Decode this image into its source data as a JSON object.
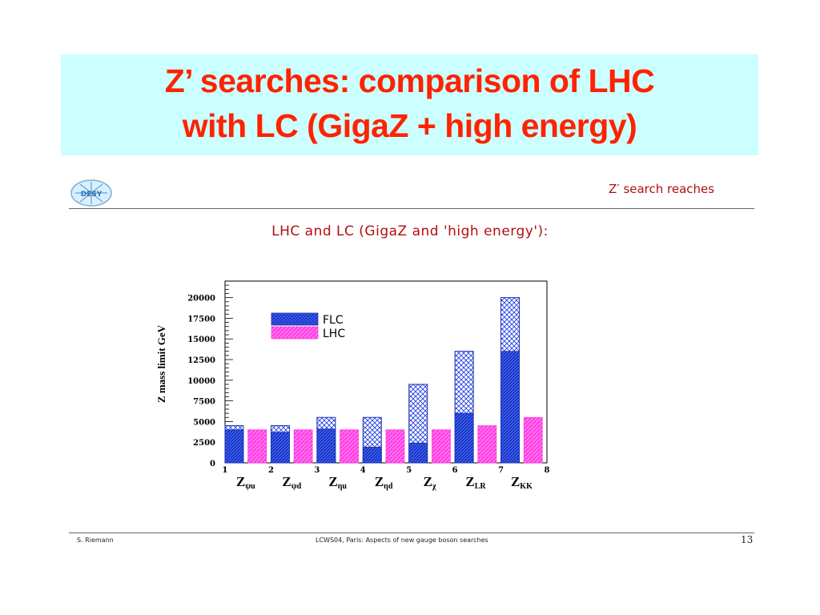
{
  "slide": {
    "title_line1": "Z’ searches: comparison of LHC",
    "title_line2": "with LC (GigaZ + high energy)",
    "header_right": "Z′ search reaches",
    "subtitle": "LHC and LC (GigaZ and 'high energy'):",
    "footer_left": "S. Riemann",
    "footer_center": "LCWS04, Paris: Aspects of new gauge boson searches",
    "page_number": "13",
    "logo_text": "DESY"
  },
  "colors": {
    "title": "#ff2200",
    "title_bg": "#ccffff",
    "flc": "#1f3ee0",
    "lhc": "#ff3ce0",
    "header": "#b01010"
  },
  "chart_data": {
    "type": "bar",
    "ylabel": "Z mass limit GeV",
    "ylim": [
      0,
      22000
    ],
    "xlim": [
      1,
      8
    ],
    "y_ticks": [
      0,
      2500,
      5000,
      7500,
      10000,
      12500,
      15000,
      17500,
      20000
    ],
    "x_ticks": [
      1,
      2,
      3,
      4,
      5,
      6,
      7,
      8
    ],
    "categories": [
      "Z_ψu",
      "Z_ψd",
      "Z_ηu",
      "Z_ηd",
      "Z_χ",
      "Z_LR",
      "Z_KK"
    ],
    "category_labels": [
      {
        "main": "Z",
        "sub": "ψu"
      },
      {
        "main": "Z",
        "sub": "ψd"
      },
      {
        "main": "Z",
        "sub": "ηu"
      },
      {
        "main": "Z",
        "sub": "ηd"
      },
      {
        "main": "Z",
        "sub": "χ"
      },
      {
        "main": "Z",
        "sub": "LR"
      },
      {
        "main": "Z",
        "sub": "KK"
      }
    ],
    "series": [
      {
        "name": "FLC",
        "values": [
          4500,
          4500,
          5500,
          5500,
          9500,
          13500,
          20000
        ],
        "inner_values": [
          4000,
          3700,
          4100,
          1900,
          2400,
          6000,
          13500
        ]
      },
      {
        "name": "LHC",
        "values": [
          4000,
          4000,
          4000,
          4000,
          4000,
          4500,
          5500
        ]
      }
    ],
    "legend_position": "top-left",
    "grid": false
  }
}
